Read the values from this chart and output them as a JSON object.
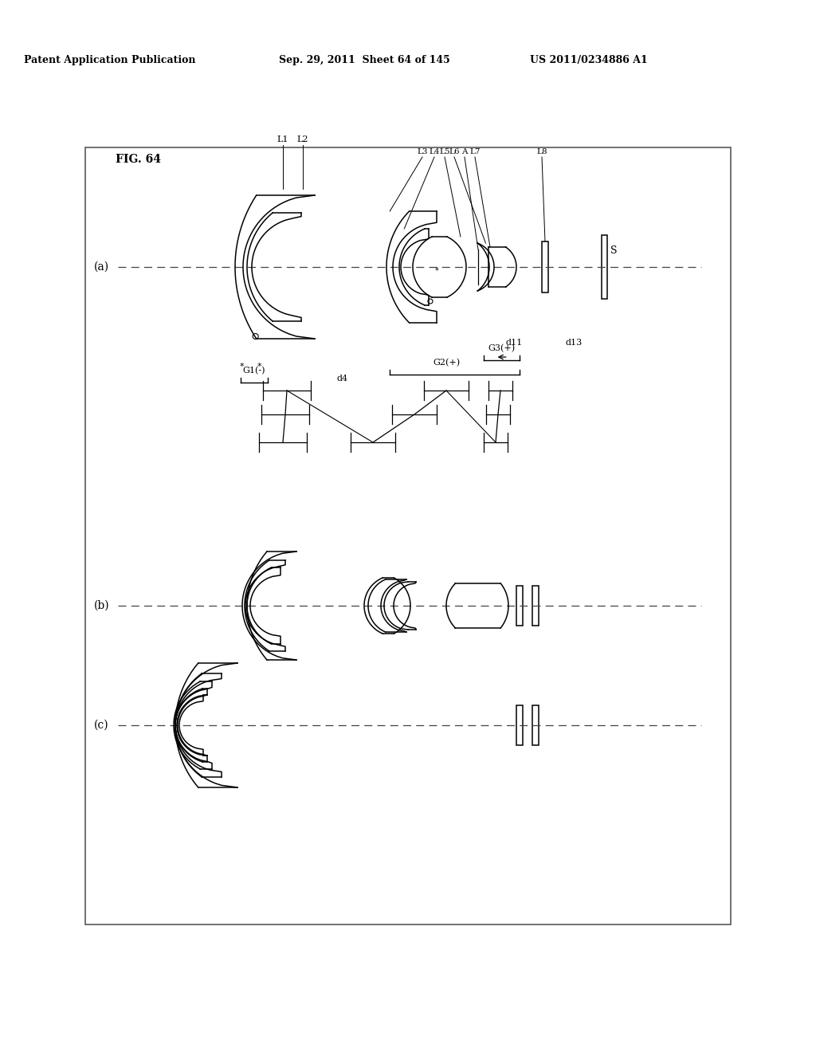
{
  "header_left": "Patent Application Publication",
  "header_mid": "Sep. 29, 2011  Sheet 64 of 145",
  "header_right": "US 2011/0234886 A1",
  "fig_label": "FIG. 64",
  "background": "#ffffff",
  "line_color": "#000000",
  "border": [
    107,
    185,
    810,
    975
  ],
  "oy_a": 335,
  "oy_b": 760,
  "oy_c": 910,
  "label_a": "(a)",
  "label_b": "(b)",
  "label_c": "(c)"
}
